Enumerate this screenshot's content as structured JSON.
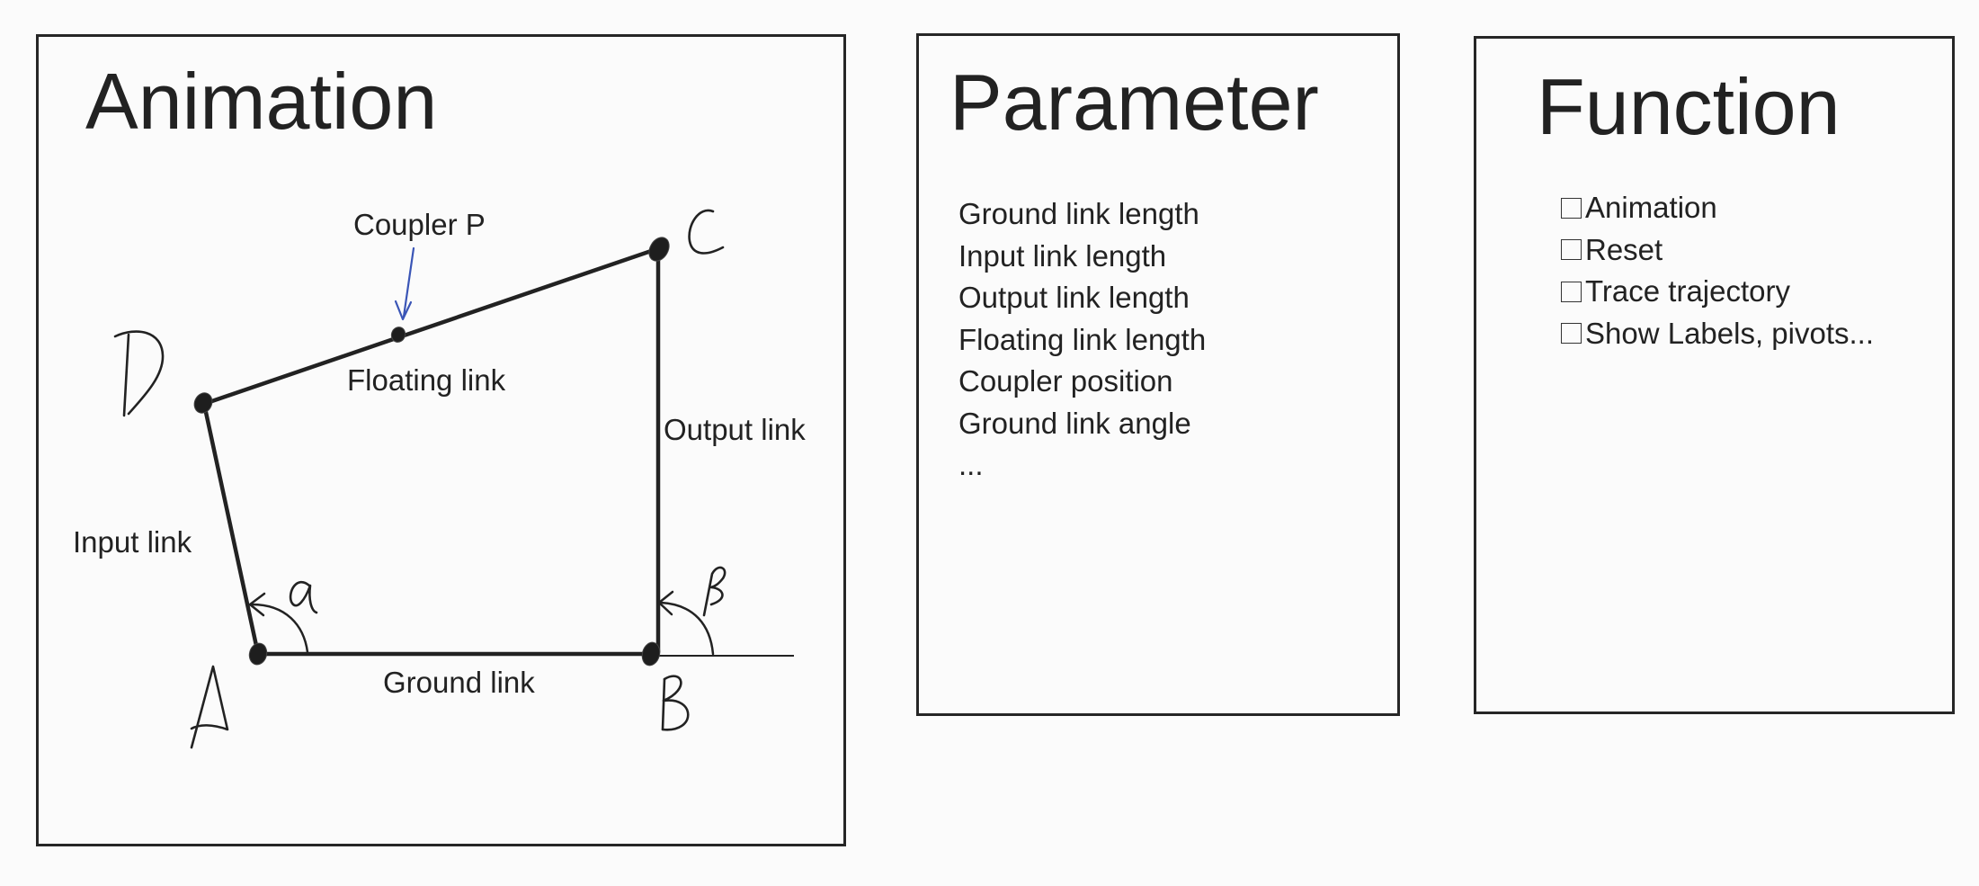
{
  "animation": {
    "title": "Animation",
    "joints": {
      "a": "A",
      "b": "B",
      "c": "C",
      "d": "D"
    },
    "labels": {
      "coupler_point": "Coupler P",
      "floating_link": "Floating link",
      "output_link": "Output link",
      "input_link": "Input link",
      "ground_link": "Ground link"
    },
    "angles": {
      "input": "α",
      "output": "β"
    }
  },
  "parameter": {
    "title": "Parameter",
    "items": [
      "Ground link length",
      "Input link length",
      "Output link length",
      "Floating link length",
      "Coupler position",
      "Ground link angle",
      "..."
    ]
  },
  "function": {
    "title": "Function",
    "options": [
      {
        "label": "Animation"
      },
      {
        "label": "Reset"
      },
      {
        "label": "Trace trajectory"
      },
      {
        "label": "Show Labels, pivots..."
      }
    ]
  },
  "colors": {
    "ink": "#222222",
    "background": "#fbfbfb",
    "coupler_arrow": "#3a55b6"
  }
}
